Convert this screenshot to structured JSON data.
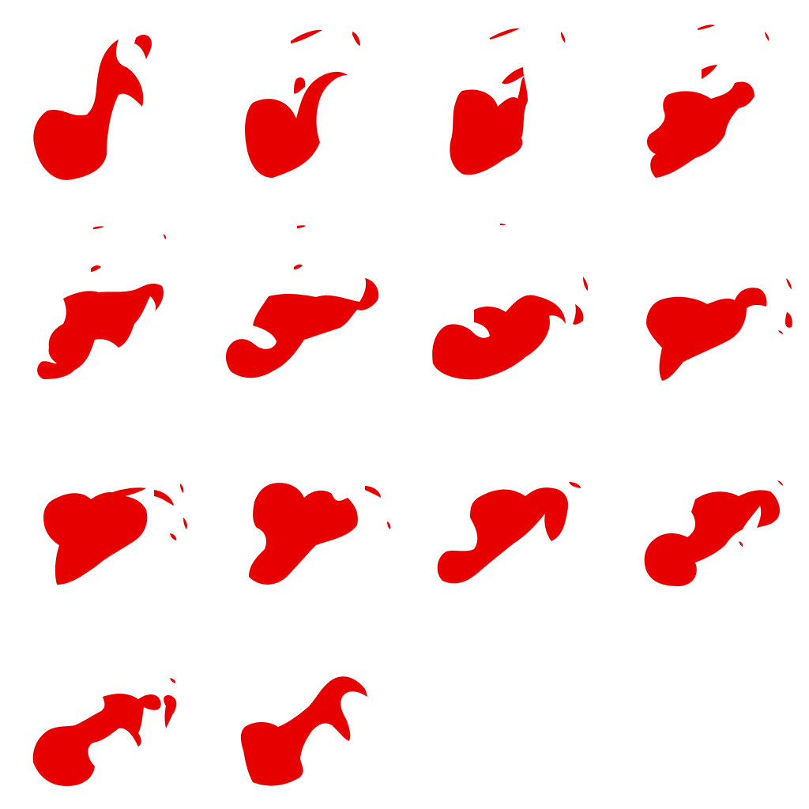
{
  "sprite_sheet": {
    "grid": {
      "columns": 4,
      "rows": 4,
      "frame_count": 14
    },
    "colors": {
      "flame": "#E60000",
      "background": "#FFFFFF"
    },
    "frames": [
      {
        "index": 1,
        "name": "flame-frame-1"
      },
      {
        "index": 2,
        "name": "flame-frame-2"
      },
      {
        "index": 3,
        "name": "flame-frame-3"
      },
      {
        "index": 4,
        "name": "flame-frame-4"
      },
      {
        "index": 5,
        "name": "flame-frame-5"
      },
      {
        "index": 6,
        "name": "flame-frame-6"
      },
      {
        "index": 7,
        "name": "flame-frame-7"
      },
      {
        "index": 8,
        "name": "flame-frame-8"
      },
      {
        "index": 9,
        "name": "flame-frame-9"
      },
      {
        "index": 10,
        "name": "flame-frame-10"
      },
      {
        "index": 11,
        "name": "flame-frame-11"
      },
      {
        "index": 12,
        "name": "flame-frame-12"
      },
      {
        "index": 13,
        "name": "flame-frame-13"
      },
      {
        "index": 14,
        "name": "flame-frame-14"
      }
    ]
  }
}
